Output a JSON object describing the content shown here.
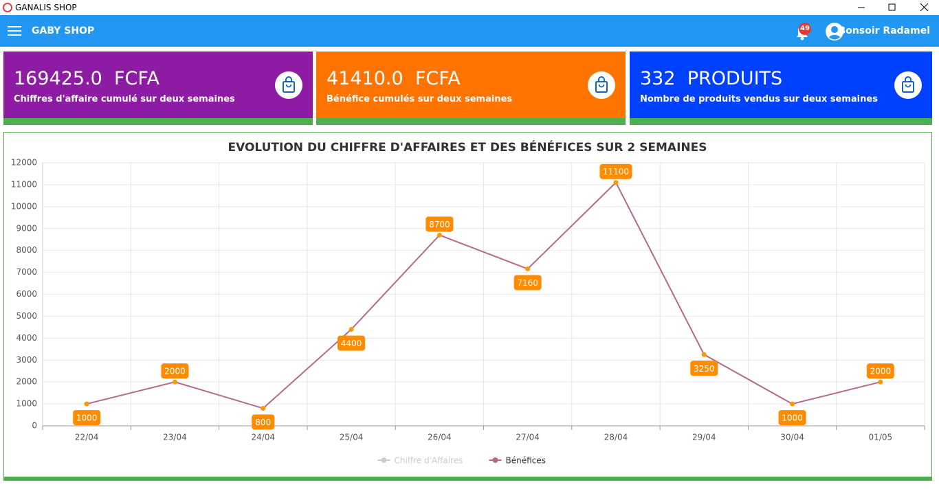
{
  "window": {
    "title": "GANALIS SHOP"
  },
  "appbar": {
    "title": "GABY SHOP",
    "notifications": "49",
    "greeting": "Bonsoir Radamel"
  },
  "cards": [
    {
      "value": "169425.0",
      "unit": "FCFA",
      "caption": "Chiffres d'affaire cumulé sur deux semaines",
      "color": "#8e1ba3"
    },
    {
      "value": "41410.0",
      "unit": "FCFA",
      "caption": "Bénéfice cumulés sur deux semaines",
      "color": "#ff7300"
    },
    {
      "value": "332",
      "unit": "PRODUITS",
      "caption": "Nombre de produits vendus sur deux semaines",
      "color": "#0040ff"
    }
  ],
  "chart_data": {
    "type": "line",
    "title": "EVOLUTION DU CHIFFRE D'AFFAIRES ET DES BÉNÉFICES SUR 2 SEMAINES",
    "categories": [
      "22/04",
      "23/04",
      "24/04",
      "25/04",
      "26/04",
      "27/04",
      "28/04",
      "29/04",
      "30/04",
      "01/05"
    ],
    "series": [
      {
        "name": "Chiffre d'Affaires",
        "color": "#cccccc",
        "hidden": true
      },
      {
        "name": "Bénéfices",
        "color": "#b8678c",
        "point_color": "#ff9800",
        "label_color": "#ff8c00",
        "values": [
          1000,
          2000,
          800,
          4400,
          8700,
          7160,
          11100,
          3250,
          1000,
          2000
        ]
      }
    ],
    "ylim": [
      0,
      12000
    ],
    "yticks": [
      0,
      1000,
      2000,
      3000,
      4000,
      5000,
      6000,
      7000,
      8000,
      9000,
      10000,
      11000,
      12000
    ],
    "grid": true,
    "legend": "bottom"
  }
}
